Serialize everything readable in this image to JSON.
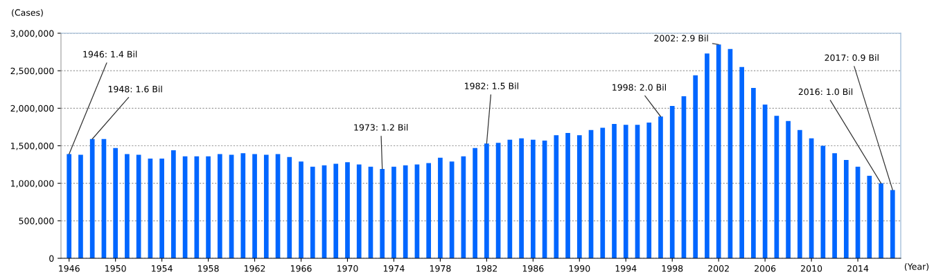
{
  "chart_data": {
    "type": "bar",
    "xlabel": "(Year)",
    "ylabel": "(Cases)",
    "x": [
      1946,
      1947,
      1948,
      1949,
      1950,
      1951,
      1952,
      1953,
      1954,
      1955,
      1956,
      1957,
      1958,
      1959,
      1960,
      1961,
      1962,
      1963,
      1964,
      1965,
      1966,
      1967,
      1968,
      1969,
      1970,
      1971,
      1972,
      1973,
      1974,
      1975,
      1976,
      1977,
      1978,
      1979,
      1980,
      1981,
      1982,
      1983,
      1984,
      1985,
      1986,
      1987,
      1988,
      1989,
      1990,
      1991,
      1992,
      1993,
      1994,
      1995,
      1996,
      1997,
      1998,
      1999,
      2000,
      2001,
      2002,
      2003,
      2004,
      2005,
      2006,
      2007,
      2008,
      2009,
      2010,
      2011,
      2012,
      2013,
      2014,
      2015,
      2016,
      2017
    ],
    "values": [
      1390000,
      1380000,
      1590000,
      1590000,
      1470000,
      1390000,
      1380000,
      1330000,
      1330000,
      1440000,
      1360000,
      1360000,
      1360000,
      1390000,
      1380000,
      1400000,
      1390000,
      1380000,
      1390000,
      1350000,
      1290000,
      1220000,
      1240000,
      1260000,
      1280000,
      1250000,
      1220000,
      1190000,
      1220000,
      1240000,
      1250000,
      1270000,
      1340000,
      1290000,
      1360000,
      1470000,
      1530000,
      1540000,
      1580000,
      1600000,
      1580000,
      1570000,
      1640000,
      1670000,
      1640000,
      1710000,
      1740000,
      1790000,
      1780000,
      1780000,
      1810000,
      1890000,
      2030000,
      2160000,
      2440000,
      2730000,
      2850000,
      2790000,
      2550000,
      2270000,
      2050000,
      1900000,
      1830000,
      1710000,
      1600000,
      1500000,
      1400000,
      1310000,
      1220000,
      1100000,
      1000000,
      910000
    ],
    "color": "#0066ff",
    "xlim": [
      1945.3,
      2017.7
    ],
    "xticks": [
      1946,
      1950,
      1954,
      1958,
      1962,
      1966,
      1970,
      1974,
      1978,
      1982,
      1986,
      1990,
      1994,
      1998,
      2002,
      2006,
      2010,
      2014
    ],
    "ylim": [
      0,
      3000000
    ],
    "yticks": [
      {
        "value": 0,
        "label": "0"
      },
      {
        "value": 500000,
        "label": "500,000"
      },
      {
        "value": 1000000,
        "label": "1,000,000"
      },
      {
        "value": 1500000,
        "label": "1,500,000"
      },
      {
        "value": 2000000,
        "label": "2,000,000"
      },
      {
        "value": 2500000,
        "label": "2,500,000"
      },
      {
        "value": 3000000,
        "label": "3,000,000"
      }
    ],
    "grid": "y",
    "annotations": [
      {
        "text": "1946: 1.4 Bil",
        "x": 1946,
        "y": 1390000
      },
      {
        "text": "1948: 1.6 Bil",
        "x": 1948,
        "y": 1590000
      },
      {
        "text": "1973: 1.2 Bil",
        "x": 1973,
        "y": 1190000
      },
      {
        "text": "1982: 1.5 Bil",
        "x": 1982,
        "y": 1530000
      },
      {
        "text": "1998: 2.0 Bil",
        "x": 1997,
        "y": 1890000
      },
      {
        "text": "2002: 2.9 Bil",
        "x": 2002,
        "y": 2850000
      },
      {
        "text": "2016: 1.0 Bil",
        "x": 2016,
        "y": 1000000
      },
      {
        "text": "2017: 0.9 Bil",
        "x": 2017,
        "y": 910000
      }
    ]
  }
}
